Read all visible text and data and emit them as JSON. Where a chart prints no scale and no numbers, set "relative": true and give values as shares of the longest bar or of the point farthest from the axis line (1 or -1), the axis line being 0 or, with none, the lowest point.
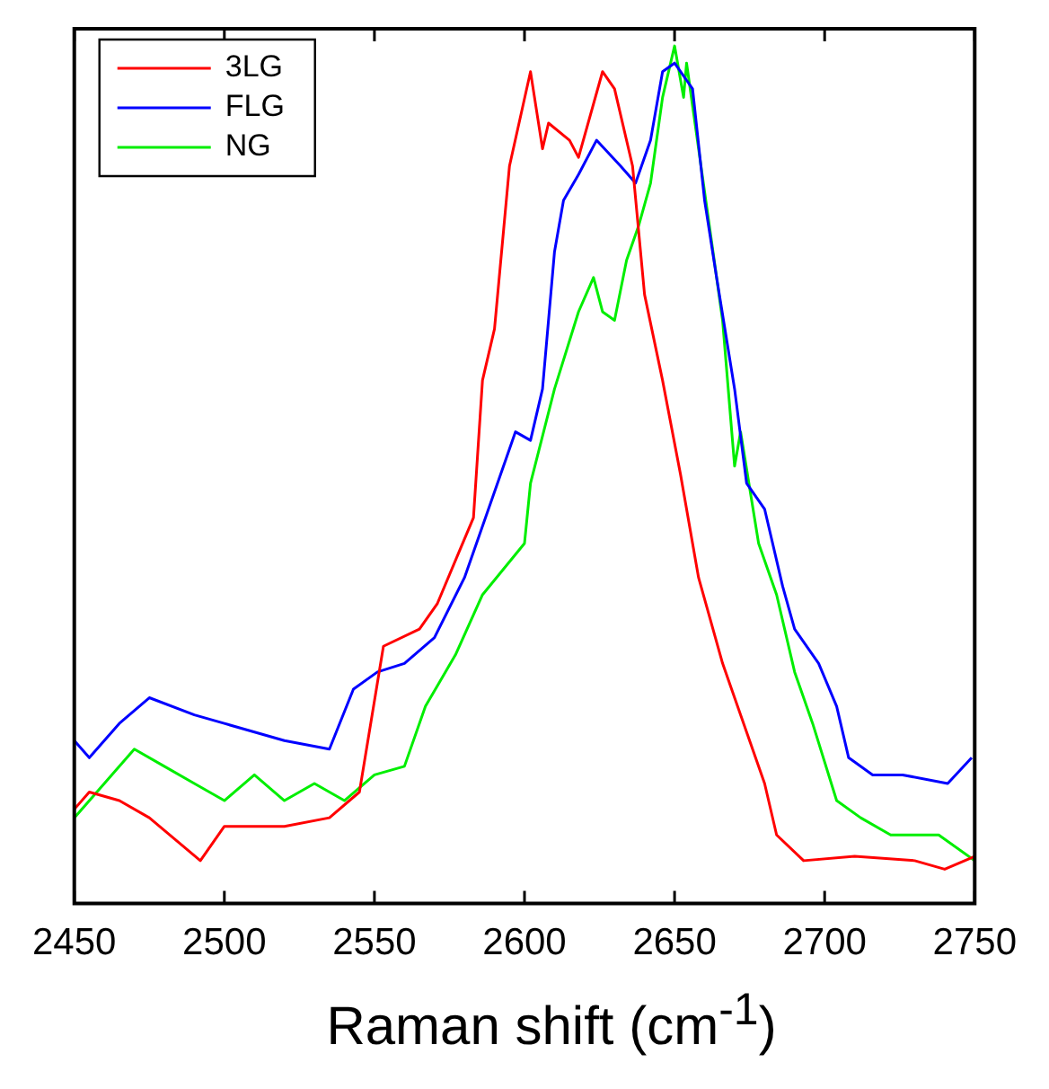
{
  "chart_data": {
    "type": "line",
    "xlabel": "Raman shift (cm$^{-1}$)",
    "xlim": [
      2450,
      2750
    ],
    "xticks": [
      2450,
      2500,
      2550,
      2600,
      2650,
      2700,
      2750
    ],
    "relative": true,
    "grid": false,
    "legend": "top left",
    "marker": "none",
    "line_style": "solid",
    "series": [
      {
        "name": "3LG",
        "color": "#ff0000",
        "x": [
          2450,
          2455,
          2465,
          2475,
          2492,
          2500,
          2520,
          2535,
          2545,
          2553,
          2565,
          2571,
          2583,
          2586,
          2590,
          2595,
          2602,
          2606,
          2608,
          2615,
          2618,
          2626,
          2630,
          2636,
          2640,
          2646,
          2652,
          2658,
          2666,
          2674,
          2680,
          2684,
          2693,
          2710,
          2730,
          2740,
          2750
        ],
        "values": [
          0.11,
          0.13,
          0.12,
          0.1,
          0.05,
          0.09,
          0.09,
          0.1,
          0.13,
          0.3,
          0.32,
          0.35,
          0.45,
          0.61,
          0.67,
          0.86,
          0.97,
          0.88,
          0.91,
          0.89,
          0.87,
          0.97,
          0.95,
          0.86,
          0.71,
          0.61,
          0.5,
          0.38,
          0.28,
          0.2,
          0.14,
          0.08,
          0.05,
          0.055,
          0.05,
          0.04,
          0.055
        ]
      },
      {
        "name": "FLG",
        "color": "#0000ff",
        "x": [
          2450,
          2455,
          2465,
          2475,
          2490,
          2500,
          2520,
          2535,
          2543,
          2551,
          2560,
          2570,
          2580,
          2585,
          2597,
          2602,
          2606,
          2610,
          2613,
          2618,
          2624,
          2632,
          2637,
          2642,
          2646,
          2650,
          2656,
          2660,
          2664,
          2670,
          2674,
          2680,
          2686,
          2690,
          2698,
          2704,
          2708,
          2716,
          2726,
          2741,
          2749
        ],
        "values": [
          0.19,
          0.17,
          0.21,
          0.24,
          0.22,
          0.21,
          0.19,
          0.18,
          0.25,
          0.27,
          0.28,
          0.31,
          0.38,
          0.43,
          0.55,
          0.54,
          0.6,
          0.76,
          0.82,
          0.85,
          0.89,
          0.86,
          0.84,
          0.89,
          0.97,
          0.98,
          0.95,
          0.82,
          0.73,
          0.6,
          0.49,
          0.46,
          0.37,
          0.32,
          0.28,
          0.23,
          0.17,
          0.15,
          0.15,
          0.14,
          0.17
        ]
      },
      {
        "name": "NG",
        "color": "#00ee00",
        "x": [
          2450,
          2460,
          2470,
          2480,
          2490,
          2500,
          2510,
          2520,
          2530,
          2540,
          2550,
          2560,
          2567,
          2577,
          2586,
          2600,
          2602,
          2610,
          2618,
          2623,
          2626,
          2630,
          2634,
          2638,
          2642,
          2646,
          2650,
          2653,
          2654,
          2658,
          2662,
          2666,
          2670,
          2672,
          2678,
          2684,
          2690,
          2696,
          2704,
          2712,
          2722,
          2738,
          2750
        ],
        "values": [
          0.1,
          0.14,
          0.18,
          0.16,
          0.14,
          0.12,
          0.15,
          0.12,
          0.14,
          0.12,
          0.15,
          0.16,
          0.23,
          0.29,
          0.36,
          0.42,
          0.49,
          0.6,
          0.69,
          0.73,
          0.69,
          0.68,
          0.75,
          0.79,
          0.84,
          0.94,
          1,
          0.94,
          0.98,
          0.88,
          0.78,
          0.68,
          0.51,
          0.55,
          0.42,
          0.36,
          0.27,
          0.21,
          0.12,
          0.1,
          0.08,
          0.08,
          0.05
        ]
      }
    ]
  }
}
